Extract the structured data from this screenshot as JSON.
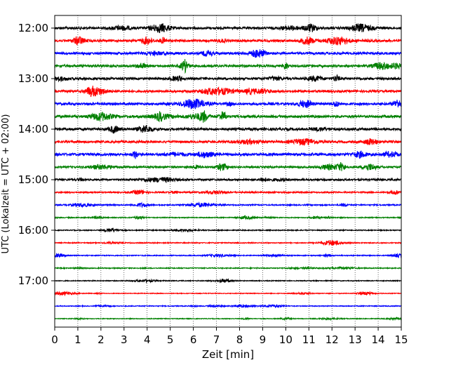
{
  "chart_data": {
    "type": "line",
    "title": "",
    "xlabel": "Zeit  [min]",
    "ylabel": "UTC (Lokalzeit = UTC + 02:00)",
    "xlim": [
      0,
      15
    ],
    "x_ticks": [
      "0",
      "1",
      "2",
      "3",
      "4",
      "5",
      "6",
      "7",
      "8",
      "9",
      "10",
      "11",
      "12",
      "13",
      "14",
      "15"
    ],
    "y_ticks": [
      "12:00",
      "13:00",
      "14:00",
      "15:00",
      "16:00",
      "17:00"
    ],
    "grid": "vertical dotted at each minute",
    "start_time": "12:00",
    "end_time": "17:45",
    "trace_interval_min": 15,
    "trace_colors": [
      "#000000",
      "#ff0000",
      "#0000ff",
      "#008000"
    ],
    "traces": [
      {
        "start": "12:00",
        "amplitude": 1.0
      },
      {
        "start": "12:15",
        "amplitude": 1.0
      },
      {
        "start": "12:30",
        "amplitude": 1.0
      },
      {
        "start": "12:45",
        "amplitude": 1.0
      },
      {
        "start": "13:00",
        "amplitude": 1.0
      },
      {
        "start": "13:15",
        "amplitude": 1.0
      },
      {
        "start": "13:30",
        "amplitude": 1.0
      },
      {
        "start": "13:45",
        "amplitude": 1.1
      },
      {
        "start": "14:00",
        "amplitude": 1.1
      },
      {
        "start": "14:15",
        "amplitude": 1.0
      },
      {
        "start": "14:30",
        "amplitude": 1.1
      },
      {
        "start": "14:45",
        "amplitude": 0.8
      },
      {
        "start": "15:00",
        "amplitude": 0.8
      },
      {
        "start": "15:15",
        "amplitude": 0.6
      },
      {
        "start": "15:30",
        "amplitude": 0.5
      },
      {
        "start": "15:45",
        "amplitude": 0.4
      },
      {
        "start": "16:00",
        "amplitude": 0.4
      },
      {
        "start": "16:15",
        "amplitude": 0.4
      },
      {
        "start": "16:30",
        "amplitude": 0.4
      },
      {
        "start": "16:45",
        "amplitude": 0.4
      },
      {
        "start": "17:00",
        "amplitude": 0.35
      },
      {
        "start": "17:15",
        "amplitude": 0.3
      },
      {
        "start": "17:30",
        "amplitude": 0.35
      },
      {
        "start": "17:45",
        "amplitude": 0.3
      }
    ]
  }
}
